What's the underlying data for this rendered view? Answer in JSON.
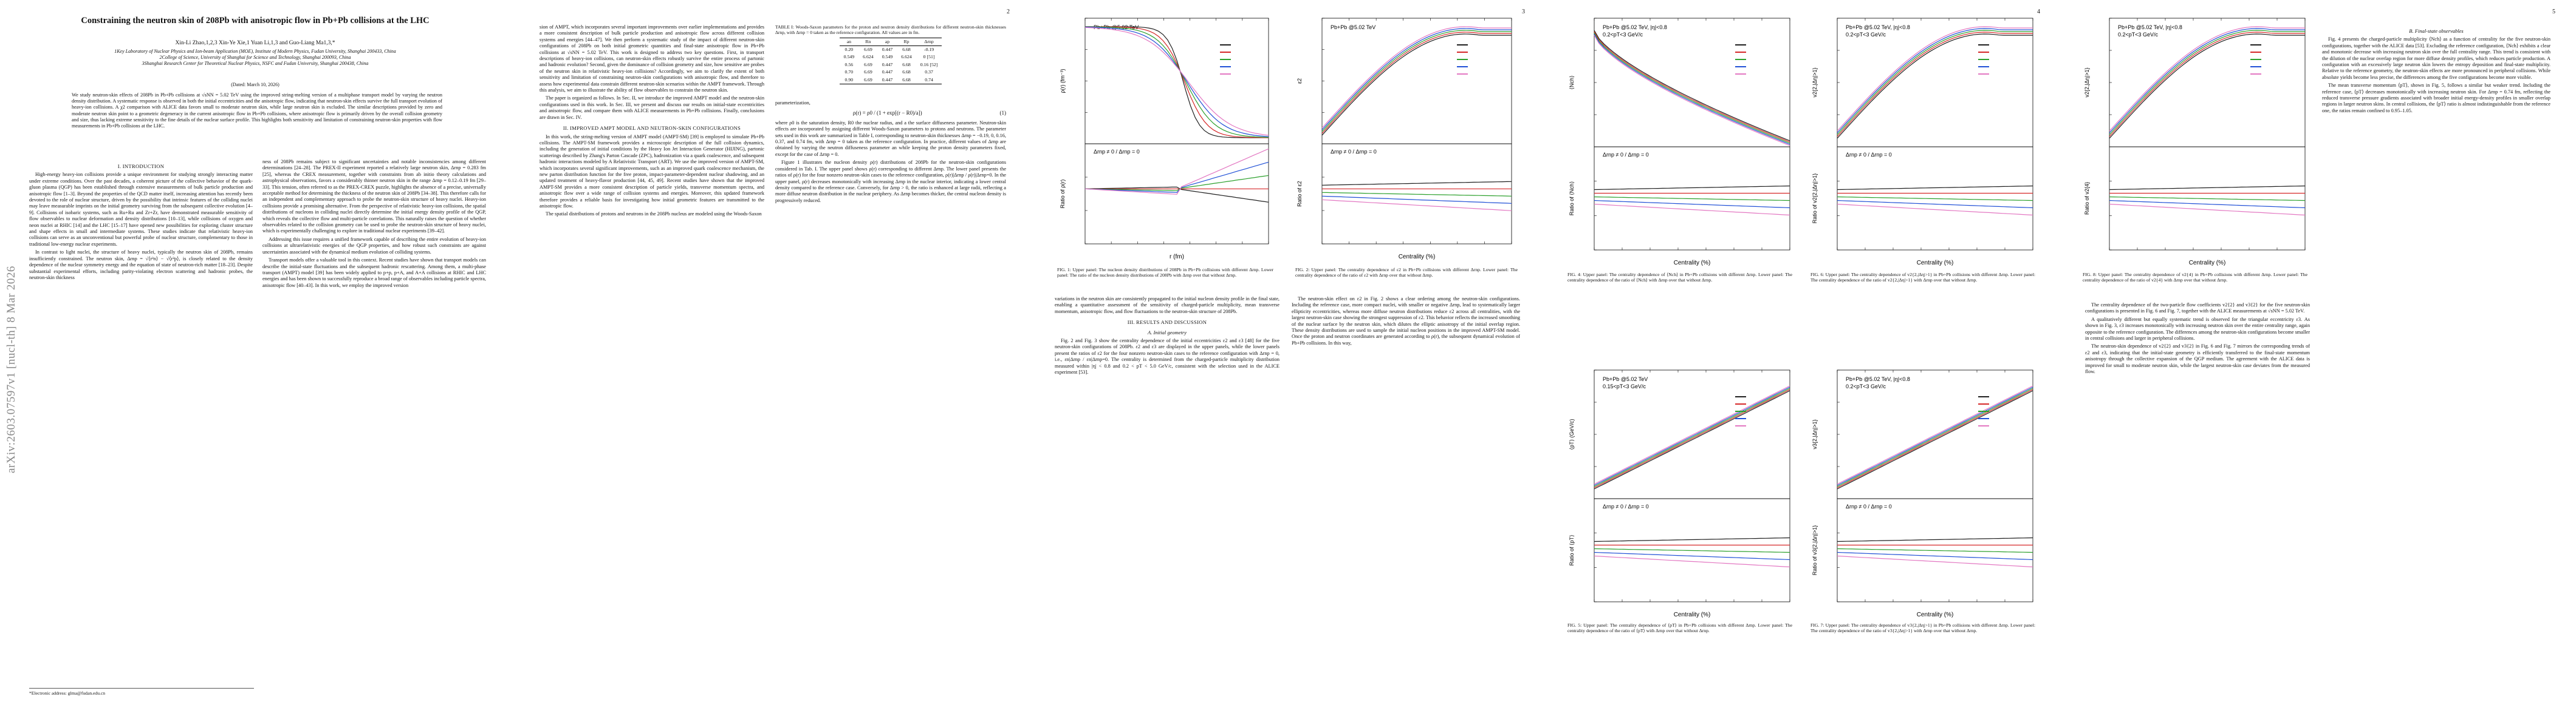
{
  "page1": {
    "title": "Constraining the neutron skin of 208Pb with anisotropic flow in Pb+Pb collisions at the LHC",
    "authors": "Xin-Li Zhao,1,2,3 Xin-Ye Xie,1 Yuan Li,1,3 and Guo-Liang Ma1,3,*",
    "affiliations": [
      "1Key Laboratory of Nuclear Physics and Ion-beam Application (MOE), Institute of Modern Physics, Fudan University, Shanghai 200433, China",
      "2College of Science, University of Shanghai for Science and Technology, Shanghai 200093, China",
      "3Shanghai Research Center for Theoretical Nuclear Physics, NSFC and Fudan University, Shanghai 200438, China"
    ],
    "date": "(Dated: March 10, 2026)",
    "abstract": "We study neutron-skin effects of 208Pb in Pb+Pb collisions at √sNN = 5.02 TeV using the improved string-melting version of a multiphase transport model by varying the neutron density distribution. A systematic response is observed in both the initial eccentricities and the anisotropic flow, indicating that neutron-skin effects survive the full transport evolution of heavy-ion collisions. A χ2 comparison with ALICE data favors small to moderate neutron skin, while large neutron skin is excluded. The similar descriptions provided by zero and moderate neutron skin point to a geometric degeneracy in the current anisotropic flow in Pb+Pb collisions, where anisotropic flow is primarily driven by the overall collision geometry and size, thus lacking extreme sensitivity to the fine details of the nuclear surface profile. This highlights both sensitivity and limitation of constraining neutron-skin properties with flow measurements in Pb+Pb collisions at the LHC.",
    "sec1": "I. INTRODUCTION",
    "left_col": [
      "High-energy heavy-ion collisions provide a unique environment for studying strongly interacting matter under extreme conditions. Over the past decades, a coherent picture of the collective behavior of the quark-gluon plasma (QGP) has been established through extensive measurements of bulk particle production and anisotropic flow [1–3]. Beyond the properties of the QCD matter itself, increasing attention has recently been devoted to the role of nuclear structure, driven by the possibility that intrinsic features of the colliding nuclei may leave measurable imprints on the initial geometry surviving from the subsequent collective evolution [4–9]. Collisions of isobaric systems, such as Ru+Ru and Zr+Zr, have demonstrated measurable sensitivity of flow observables to nuclear deformation and density distributions [10–13], while collisions of oxygen and neon nuclei at RHIC [14] and the LHC [15–17] have opened new possibilities for exploring cluster structure and shape effects in small and intermediate systems. These studies indicate that relativistic heavy-ion collisions can serve as an unconventional but powerful probe of nuclear structure, complementary to those in traditional low-energy nuclear experiments.",
      "In contrast to light nuclei, the structure of heavy nuclei, typically the neutron skin of 208Pb, remains insufficiently constrained. The neutron skin, Δrnp = √⟨r²n⟩ − √⟨r²p⟩, is closely related to the density dependence of the nuclear symmetry energy and the equation of state of neutron-rich matter [18–23]. Despite substantial experimental efforts, including parity-violating electron scattering and hadronic probes, the neutron-skin thickness"
    ],
    "right_col": [
      "ness of 208Pb remains subject to significant uncertainties and notable inconsistencies among different determinations [24–28]. The PREX-II experiment reported a relatively large neutron skin, Δrnp = 0.283 fm [25], whereas the CREX measurement, together with constraints from ab initio theory calculations and astrophysical observations, favors a considerably thinner neutron skin in the range Δrnp = 0.12–0.19 fm [29–33]. This tension, often referred to as the PREX-CREX puzzle, highlights the absence of a precise, universally acceptable method for determining the thickness of the neutron skin of 208Pb [34–38]. This therefore calls for an independent and complementary approach to probe the neutron-skin structure of heavy nuclei. Heavy-ion collisions provide a promising alternative. From the perspective of relativistic heavy-ion collisions, the spatial distributions of nucleons in colliding nuclei directly determine the initial energy density profile of the QGP, which reveals the collective flow and multi-particle correlations. This naturally raises the question of whether observables related to the collision geometry can be used to probe the neutron-skin structure of heavy nuclei, which is experimentally challenging to explore in traditional nuclear experiments [39–42].",
      "Addressing this issue requires a unified framework capable of describing the entire evolution of heavy-ion collisions at ultrarelativistic energies of the QGP properties, and how robust such constraints are against uncertainties associated with the dynamical medium evolution of colliding systems.",
      "Transport models offer a valuable tool in this context. Recent studies have shown that transport models can describe the initial-state fluctuations and the subsequent hadronic rescattering. Among them, a multi-phase transport (AMPT) model [39] has been widely applied to p+p, p+A, and A+A collisions at RHIC and LHC energies and has been shown to successfully reproduce a broad range of observables including particle spectra, anisotropic flow [40–43]. In this work, we employ the improved version"
    ],
    "footnote": "*Electronic address: glma@fudan.edu.cn",
    "arxiv": "arXiv:2603.07597v1  [nucl-th]  8 Mar 2026"
  },
  "page2": {
    "page_number": "2",
    "left_col": [
      "sion of AMPT, which incorporates several important improvements over earlier implementations and provides a more consistent description of bulk particle production and anisotropic flow across different collision systems and energies [44–47]. We then perform a systematic study of the impact of different neutron-skin configurations of 208Pb on both initial geometric quantities and final-state anisotropic flow in Pb+Pb collisions at √sNN = 5.02 TeV. This work is designed to address two key questions. First, in transport descriptions of heavy-ion collisions, can neutron-skin effects robustly survive the entire process of partonic and hadronic evolution? Second, given the dominance of collision geometry and size, how sensitive are probes of the neutron skin in relativistic heavy-ion collisions? Accordingly, we aim to clarify the extent of both sensitivity and limitation of constraining neutron-skin configurations with anisotropic flow, and therefore to assess how experimental data constrain different neutron-skin scenarios within the AMPT framework. Through this analysis, we aim to illustrate the ability of flow observables to constrain the neutron skin.",
      "The paper is organized as follows. In Sec. II, we introduce the improved AMPT model and the neutron-skin configurations used in this work. In Sec. III, we present and discuss our results on initial-state eccentricities and anisotropic flow, and compare them with ALICE measurements in Pb+Pb collisions. Finally, conclusions are drawn in Sec. IV."
    ],
    "sec2": "II. IMPROVED AMPT MODEL AND NEUTRON-SKIN CONFIGURATIONS",
    "left_col2": [
      "In this work, the string-melting version of AMPT model (AMPT-SM) [39] is employed to simulate Pb+Pb collisions. The AMPT-SM framework provides a microscopic description of the full collision dynamics, including the generation of initial conditions by the Heavy Ion Jet Interaction Generator (HIJING), partonic scatterings described by Zhang's Parton Cascade (ZPC), hadronization via a quark coalescence, and subsequent hadronic interactions modeled by A Relativistic Transport (ART). We use the improved version of AMPT-SM, which incorporates several significant improvements, such as an improved quark coalescence mechanism, the new parton distribution function for the free proton, impact-parameter-dependent nuclear shadowing, and an updated treatment of heavy-flavor production [44, 45, 49]. Recent studies have shown that the improved AMPT-SM provides a more consistent description of particle yields, transverse momentum spectra, and anisotropic flow over a wide range of collision systems and energies. Moreover, this updated framework therefore provides a reliable basis for investigating how initial geometric features are transmitted to the anisotropic flow.",
      "The spatial distributions of protons and neutrons in the 208Pb nucleus are modeled using the Woods-Saxon"
    ],
    "table_caption": "TABLE I: Woods-Saxon parameters for the proton and neutron density distributions for different neutron-skin thicknesses Δrnp, with Δrnp = 0 taken as the reference configuration. All values are in fm.",
    "table_header": [
      "an",
      "Rn",
      "ap",
      "Rp",
      "Δrnp"
    ],
    "table_rows": [
      [
        "0.20",
        "6.69",
        "0.447",
        "6.68",
        "-0.19"
      ],
      [
        "0.549",
        "6.624",
        "0.549",
        "6.624",
        "0 [51]"
      ],
      [
        "0.56",
        "6.69",
        "0.447",
        "6.68",
        "0.16 [52]"
      ],
      [
        "0.70",
        "6.69",
        "0.447",
        "6.68",
        "0.37"
      ],
      [
        "0.90",
        "6.69",
        "0.447",
        "6.68",
        "0.74"
      ]
    ],
    "right_col": [
      "parameterization,"
    ],
    "equation": "ρ(r) = ρ0 / (1 + exp[(r − R0)/a])",
    "equation_number": "(1)",
    "right_col2": [
      "where ρ0 is the saturation density, R0 the nuclear radius, and a the surface diffuseness parameter. Neutron-skin effects are incorporated by assigning different Woods-Saxon parameters to protons and neutrons. The parameter sets used in this work are summarized in Table I, corresponding to neutron-skin thicknesses Δrnp = −0.19, 0, 0.16, 0.37, and 0.74 fm, with Δrnp = 0 taken as the reference configuration. In practice, different values of Δrnp are obtained by varying the neutron diffuseness parameter an while keeping the proton density parameters fixed, except for the case of Δrnp = 0.",
      "Figure 1 illustrates the nucleon density ρ(r) distributions of 208Pb for the neutron-skin configurations considered in Tab. I. The upper panel shows ρ(r) corresponding to different Δrnp. The lower panel presents the ratios of ρ(r) for the four nonzero neutron-skin cases to the reference configuration, ρ(r)|Δrnp / ρ(r)|Δrnp=0. In the upper panel, ρ(r) decreases monotonically with increasing Δrnp in the nuclear interior, indicating a lower central density compared to the reference case. Conversely, for Δrnp > 0, the ratio is enhanced at large radii, reflecting a more diffuse neutron distribution in the nuclear periphery. As Δrnp becomes thicker, the central nucleon density is progressively reduced."
    ]
  },
  "page3": {
    "page_number": "3",
    "fig1_caption": "FIG. 1: Upper panel: The nucleon density distributions of 208Pb in Pb+Pb collisions with different Δrnp. Lower panel: The ratio of the nucleon density distributions of 208Pb with Δrnp over that without Δrnp.",
    "fig2_caption": "FIG. 2: Upper panel: The centrality dependence of ε2 in Pb+Pb collisions with different Δrnp. Lower panel: The centrality dependence of the ratio of ε2 with Δrnp over that without Δrnp.",
    "text": [
      "variations in the neutron skin are consistently propagated to the initial nucleon density profile in the final state, enabling a quantitative assessment of the sensitivity of charged-particle multiplicity, mean transverse momentum, anisotropic flow, and flow fluctuations to the neutron-skin structure of 208Pb."
    ],
    "sec3": "III. RESULTS AND DISCUSSION",
    "sub3a": "A. Initial geometry",
    "text2": [
      "Fig. 2 and Fig. 3 show the centrality dependence of the initial eccentricities ε2 and ε3 [48] for the five neutron-skin configurations of 208Pb. ε2 and ε3 are displayed in the upper panels, while the lower panels present the ratios of ε2 for the four nonzero neutron-skin cases to the reference configuration with Δrnp = 0, i.e., εn|Δrnp / εn|Δrnp=0. The centrality is determined from the charged-particle multiplicity distribution measured within |η| < 0.8 and 0.2 < pT < 5.0 GeV/c, consistent with the selection used in the ALICE experiment [53].",
      "The neutron-skin effect on ε2 in Fig. 2 shows a clear ordering among the neutron-skin configurations. Including the reference case, more compact nuclei, with smaller or negative Δrnp, lead to systematically larger ellipticity eccentricities, whereas more diffuse neutron distributions reduce ε2 across all centralities, with the largest neutron-skin case showing the strongest suppression of ε2. This behavior reflects the increased smoothing of the nuclear surface by the neutron skin, which dilutes the elliptic anisotropy of the initial overlap region. These density distributions are used to sample the initial nucleon positions in the improved AMPT-SM model. Once the proton and neutron coordinates are generated according to ρ(r), the subsequent dynamical evolution of Pb+Pb collisions. In this way,"
    ],
    "fig1": {
      "title": "Pb+Pb @5.02 TeV",
      "xlabel": "r (fm)",
      "ylabel_top": "ρ(r) (fm⁻³)",
      "ylabel_bottom": "Ratio of ρ(r)",
      "ratio_label": "Δrnp ≠ 0 / Δrnp = 0"
    },
    "fig2": {
      "title": "Pb+Pb @5.02 TeV",
      "xlabel": "Centrality (%)",
      "ylabel_top": "ε2",
      "ylabel_bottom": "Ratio of ε2",
      "ratio_label": "Δrnp ≠ 0 / Δrnp = 0"
    }
  },
  "page4": {
    "page_number": "4",
    "fig3": {
      "title": "Pb+Pb @5.02 TeV, |η|<0.8",
      "subtitle": "0.2<pT<3 GeV/c",
      "xlabel": "Centrality (%)",
      "ylabel_top": "⟨Nch⟩",
      "ylabel_bottom": "Ratio of ⟨Nch⟩",
      "ratio_label": "Δrnp ≠ 0 / Δrnp = 0"
    },
    "fig4": {
      "title": "Pb+Pb @5.02 TeV, |η|<0.8",
      "subtitle": "0.2<pT<3 GeV/c",
      "xlabel": "Centrality (%)",
      "ylabel_top": "v2{2,|Δη|>1}",
      "ylabel_bottom": "Ratio of v2{2,|Δη|>1}",
      "ratio_label": "Δrnp ≠ 0 / Δrnp = 0"
    },
    "fig5": {
      "title": "Pb+Pb @5.02 TeV",
      "subtitle": "0.15<pT<3 GeV/c",
      "xlabel": "Centrality (%)",
      "ylabel_top": "⟨pT⟩ (GeV/c)",
      "ylabel_bottom": "Ratio of ⟨pT⟩",
      "ratio_label": "Δrnp ≠ 0 / Δrnp = 0"
    },
    "fig6": {
      "title": "Pb+Pb @5.02 TeV, |η|<0.8",
      "subtitle": "0.2<pT<3 GeV/c",
      "xlabel": "Centrality (%)",
      "ylabel_top": "v3{2,|Δη|>1}",
      "ylabel_bottom": "Ratio of v3{2,|Δη|>1}",
      "ratio_label": "Δrnp ≠ 0 / Δrnp = 0"
    },
    "fig3_caption": "FIG. 4: Upper panel: The centrality dependence of ⟨Nch⟩ in Pb+Pb collisions with different Δrnp. Lower panel: The centrality dependence of the ratio of ⟨Nch⟩ with Δrnp over that without Δrnp.",
    "fig4_caption": "FIG. 6: Upper panel: The centrality dependence of v2{2,|Δη|>1} in Pb+Pb collisions with different Δrnp. Lower panel: The centrality dependence of the ratio of v2{2,|Δη|>1} with Δrnp over that without Δrnp.",
    "fig5_caption": "FIG. 5: Upper panel: The centrality dependence of ⟨pT⟩ in Pb+Pb collisions with different Δrnp. Lower panel: The centrality dependence of the ratio of ⟨pT⟩ with Δrnp over that without Δrnp.",
    "fig6_caption": "FIG. 7: Upper panel: The centrality dependence of v3{2,|Δη|>1} in Pb+Pb collisions with different Δrnp. Lower panel: The centrality dependence of the ratio of v3{2,|Δη|>1} with Δrnp over that without Δrnp."
  },
  "page5": {
    "page_number": "5",
    "fig8": {
      "title": "Pb+Pb @5.02 TeV, |η|<0.8",
      "subtitle": "0.2<pT<3 GeV/c",
      "xlabel": "Centrality (%)",
      "ylabel_top": "v2{2,|Δη|>1}",
      "ylabel_bottom": "Ratio of v2{4}"
    },
    "fig8_caption": "FIG. 8: Upper panel: The centrality dependence of v2{4} in Pb+Pb collisions with different Δrnp. Lower panel: The centrality dependence of the ratio of v2{4} with Δrnp over that without Δrnp.",
    "sub3b": "B. Final-state observables",
    "col1": [
      "Fig. 4 presents the charged-particle multiplicity ⟨Nch⟩ as a function of centrality for the five neutron-skin configurations, together with the ALICE data [53]. Excluding the reference configuration, ⟨Nch⟩ exhibits a clear and monotonic decrease with increasing neutron skin over the full centrality range. This trend is consistent with the dilution of the nuclear overlap region for more diffuse density profiles, which reduces particle production. A configuration with an excessively large neutron skin lowers the entropy deposition and final-state multiplicity. Relative to the reference geometry, the neutron-skin effects are more pronounced in peripheral collisions. While absolute yields become less precise, the differences among the five configurations become more visible.",
      "The mean transverse momentum ⟨pT⟩, shown in Fig. 5, follows a similar but weaker trend. Including the reference case, ⟨pT⟩ decreases monotonically with increasing neutron skin. For Δrnp = 0.74 fm, reflecting the reduced transverse pressure gradients associated with broader initial energy-density profiles in smaller overlap regions in larger neutron skins. In central collisions, the ⟨pT⟩ ratio is almost indistinguishable from the reference one, the ratios remain confined to 0.95–1.05.",
      "The centrality dependence of the two-particle flow coefficients v2{2} and v3{2} for the five neutron-skin configurations is presented in Fig. 6 and Fig. 7, together with the ALICE measurements at √sNN = 5.02 TeV.",
      "A qualitatively different but equally systematic trend is observed for the triangular eccentricity ε3. As shown in Fig. 3, ε3 increases monotonically with increasing neutron skin over the entire centrality range, again opposite to the reference configuration. The differences among the neutron-skin configurations become smaller in central collisions and larger in peripheral collisions.",
      "The neutron-skin dependence of v2{2} and v3{2} in Fig. 6 and Fig. 7 mirrors the corresponding trends of ε2 and ε3, indicating that the initial-state geometry is efficiently transferred to the final-state momentum anisotropy through the collective expansion of the QGP medium. The agreement with the ALICE data is improved for small to moderate neutron skin, while the largest neutron-skin case deviates from the measured flow."
    ]
  }
}
